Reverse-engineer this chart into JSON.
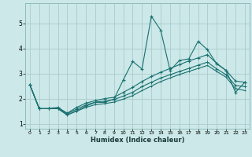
{
  "title": "",
  "xlabel": "Humidex (Indice chaleur)",
  "bg_color": "#cce8e8",
  "grid_color": "#aacccc",
  "line_color": "#1a7070",
  "xlim": [
    -0.5,
    23.5
  ],
  "ylim": [
    0.8,
    5.8
  ],
  "xticks": [
    0,
    1,
    2,
    3,
    4,
    5,
    6,
    7,
    8,
    9,
    10,
    11,
    12,
    13,
    14,
    15,
    16,
    17,
    18,
    19,
    20,
    21,
    22,
    23
  ],
  "yticks": [
    1,
    2,
    3,
    4,
    5
  ],
  "line1_x": [
    0,
    1,
    2,
    3,
    4,
    5,
    6,
    7,
    8,
    9,
    10,
    11,
    12,
    13,
    14,
    15,
    16,
    17,
    18,
    19,
    20,
    21,
    22,
    23
  ],
  "line1_y": [
    2.55,
    1.6,
    1.6,
    1.6,
    1.35,
    1.52,
    1.7,
    1.85,
    1.85,
    1.98,
    2.75,
    3.48,
    3.18,
    5.28,
    4.72,
    3.12,
    3.52,
    3.58,
    4.28,
    3.95,
    3.38,
    3.12,
    2.25,
    2.65
  ],
  "line2_x": [
    0,
    1,
    2,
    3,
    4,
    5,
    6,
    7,
    8,
    9,
    10,
    11,
    12,
    13,
    14,
    15,
    16,
    17,
    18,
    19,
    20,
    21,
    22,
    23
  ],
  "line2_y": [
    2.55,
    1.6,
    1.6,
    1.65,
    1.42,
    1.65,
    1.82,
    1.92,
    2.0,
    2.05,
    2.25,
    2.45,
    2.68,
    2.88,
    3.05,
    3.2,
    3.35,
    3.5,
    3.62,
    3.75,
    3.4,
    3.12,
    2.7,
    2.65
  ],
  "line3_x": [
    0,
    1,
    2,
    3,
    4,
    5,
    6,
    7,
    8,
    9,
    10,
    11,
    12,
    13,
    14,
    15,
    16,
    17,
    18,
    19,
    20,
    21,
    22,
    23
  ],
  "line3_y": [
    2.55,
    1.6,
    1.6,
    1.62,
    1.4,
    1.58,
    1.75,
    1.86,
    1.9,
    1.96,
    2.1,
    2.25,
    2.48,
    2.65,
    2.82,
    2.95,
    3.08,
    3.2,
    3.33,
    3.45,
    3.18,
    2.95,
    2.52,
    2.48
  ],
  "line4_x": [
    0,
    1,
    2,
    3,
    4,
    5,
    6,
    7,
    8,
    9,
    10,
    11,
    12,
    13,
    14,
    15,
    16,
    17,
    18,
    19,
    20,
    21,
    22,
    23
  ],
  "line4_y": [
    2.55,
    1.6,
    1.6,
    1.6,
    1.35,
    1.5,
    1.65,
    1.76,
    1.8,
    1.86,
    1.98,
    2.12,
    2.32,
    2.5,
    2.68,
    2.82,
    2.96,
    3.08,
    3.2,
    3.32,
    3.08,
    2.85,
    2.4,
    2.32
  ]
}
